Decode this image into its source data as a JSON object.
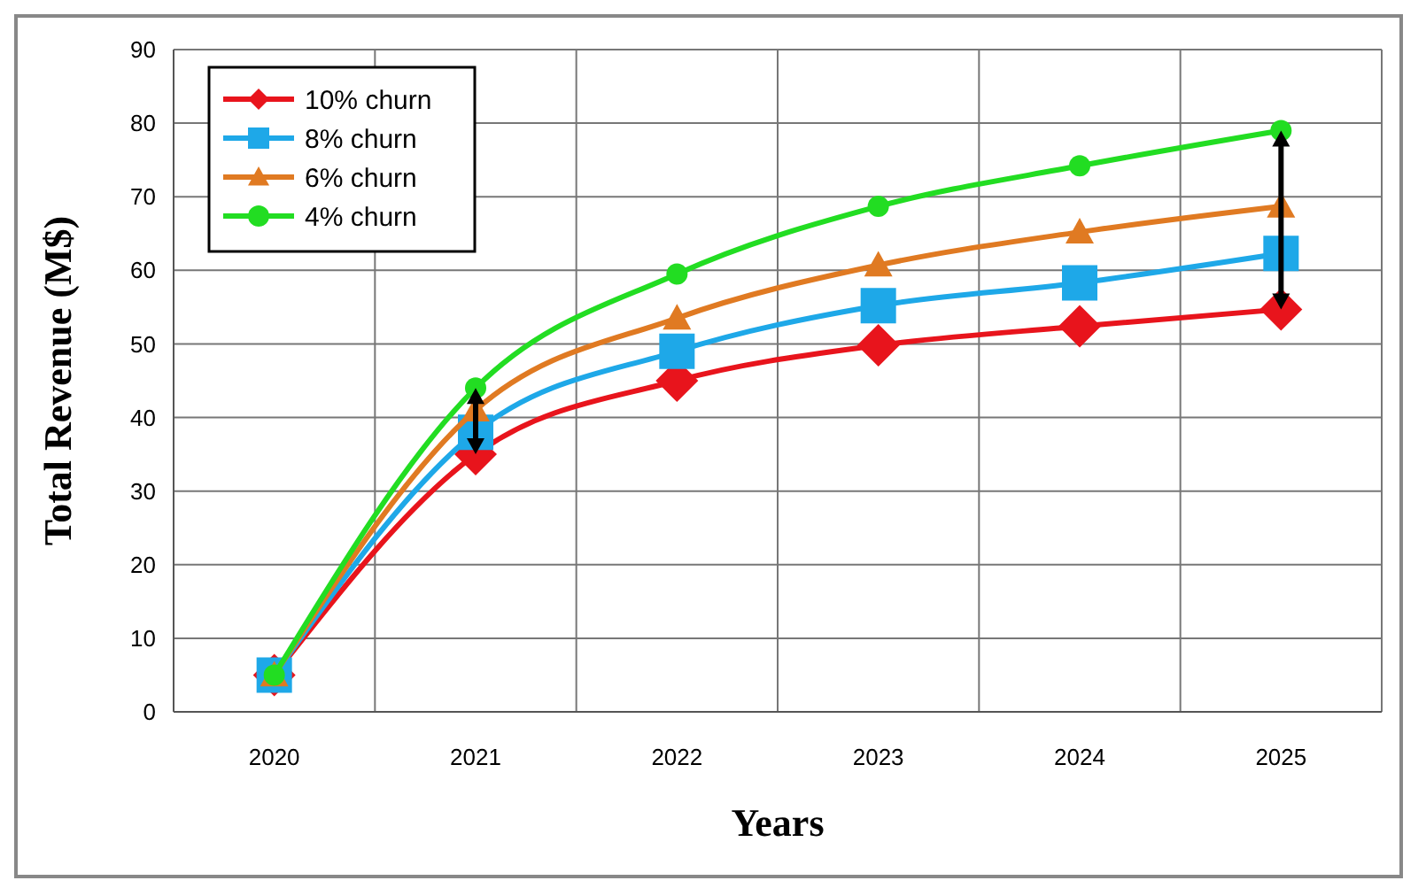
{
  "chart_data": {
    "type": "line",
    "xlabel": "Years",
    "ylabel": "Total Revenue (M$)",
    "categories": [
      "2020",
      "2021",
      "2022",
      "2023",
      "2024",
      "2025"
    ],
    "series": [
      {
        "name": "10% churn",
        "color": "#e8141c",
        "marker": "diamond",
        "values": [
          5,
          35,
          45,
          49.8,
          52.4,
          54.7
        ]
      },
      {
        "name": "8% churn",
        "color": "#1ea8e8",
        "marker": "square",
        "values": [
          5,
          38,
          49,
          55.2,
          58.3,
          62.3
        ]
      },
      {
        "name": "6% churn",
        "color": "#e07a22",
        "marker": "triangle",
        "values": [
          5,
          41,
          53.5,
          60.7,
          65.2,
          68.7
        ]
      },
      {
        "name": "4% churn",
        "color": "#22dd22",
        "marker": "circle",
        "values": [
          5,
          44,
          59.5,
          68.7,
          74.2,
          79
        ]
      }
    ],
    "ylim": [
      0,
      90
    ],
    "yticks": [
      0,
      10,
      20,
      30,
      40,
      50,
      60,
      70,
      80,
      90
    ],
    "grid": true,
    "legend": "top left"
  }
}
